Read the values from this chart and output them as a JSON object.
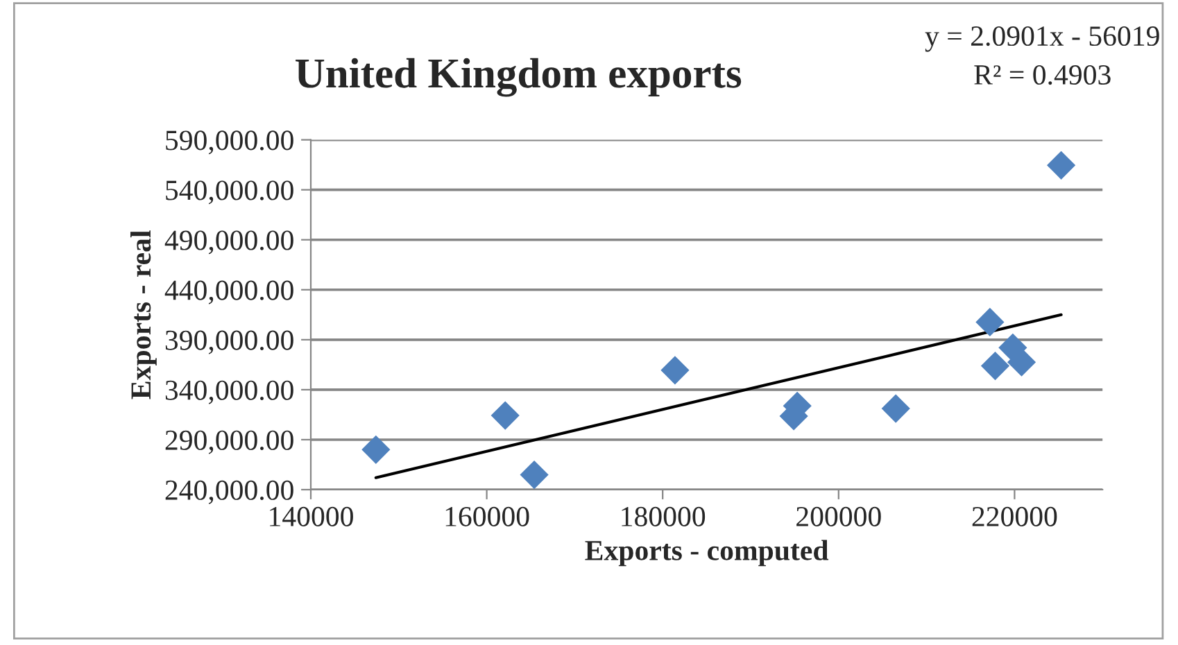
{
  "chart_data": {
    "type": "scatter",
    "title": "United Kingdom exports",
    "xlabel": "Exports - computed",
    "ylabel": "Exports - real",
    "annotations": [
      "y = 2.0901x - 56019",
      "R² = 0.4903"
    ],
    "series": [
      {
        "type": "scatter",
        "color": "#4f81bd",
        "marker": "diamond",
        "x": [
          147400,
          162100,
          165400,
          181400,
          194900,
          195300,
          206500,
          217200,
          217800,
          219800,
          220800,
          225300
        ],
        "values": [
          280000,
          314200,
          254900,
          359500,
          313600,
          323800,
          321100,
          407600,
          363800,
          382000,
          367500,
          564500
        ]
      },
      {
        "type": "line",
        "color": "#000000",
        "marker": "none",
        "x": [
          147400,
          225300
        ],
        "values": [
          252000,
          415000
        ]
      }
    ],
    "xlim": [
      140000,
      230000
    ],
    "xticks": [
      140000,
      160000,
      180000,
      200000,
      220000
    ],
    "ylim": [
      240000,
      590000
    ],
    "yticks": [
      {
        "value": 240000,
        "label": "240,000.00"
      },
      {
        "value": 290000,
        "label": "290,000.00"
      },
      {
        "value": 340000,
        "label": "340,000.00"
      },
      {
        "value": 390000,
        "label": "390,000.00"
      },
      {
        "value": 440000,
        "label": "440,000.00"
      },
      {
        "value": 490000,
        "label": "490,000.00"
      },
      {
        "value": 540000,
        "label": "540,000.00"
      },
      {
        "value": 590000,
        "label": "590,000.00"
      }
    ],
    "grid": "y",
    "legend": false
  }
}
